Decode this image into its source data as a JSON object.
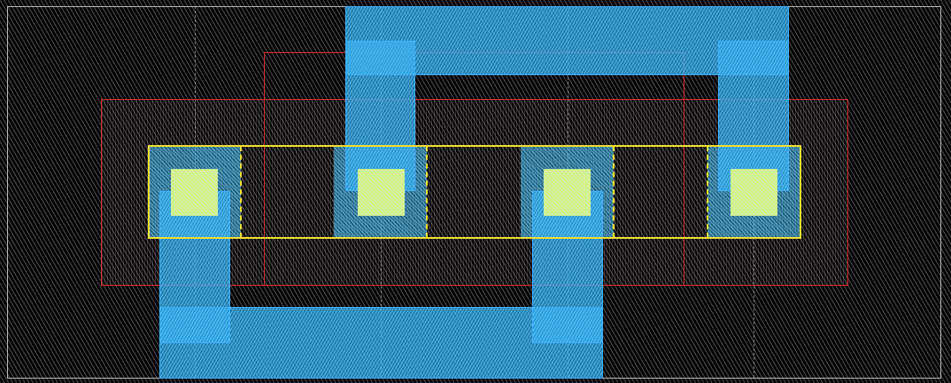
{
  "colors": {
    "background": "#000000",
    "boundary": "#bbbbbb",
    "poly": "#e0302a",
    "diffusion": "#f0e030",
    "metal": "#28a0e6",
    "contact": "#c8f0b0"
  }
}
